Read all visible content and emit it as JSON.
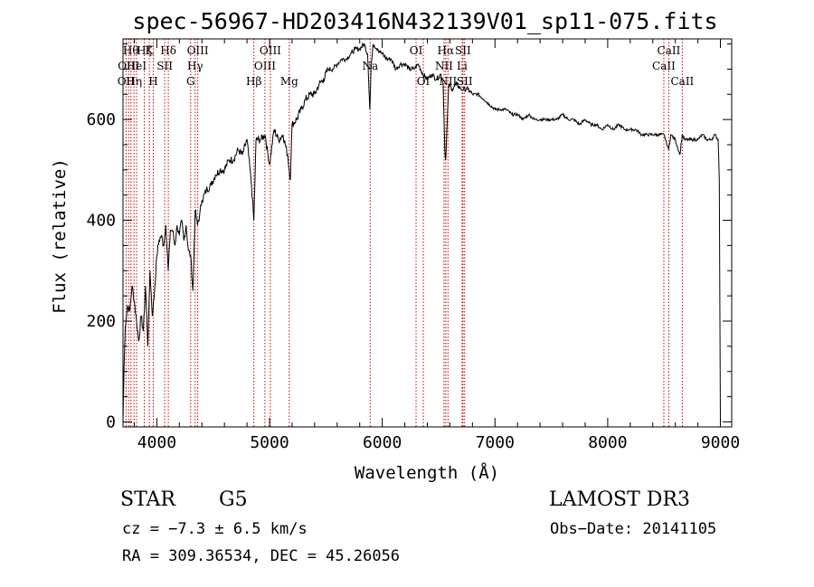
{
  "chart_data": {
    "type": "line",
    "title": "spec-56967-HD203416N432139V01_sp11-075.fits",
    "xlabel": "Wavelength (Å)",
    "ylabel": "Flux (relative)",
    "xlim": [
      3700,
      9100
    ],
    "ylim": [
      -10,
      760
    ],
    "xticks": [
      4000,
      5000,
      6000,
      7000,
      8000,
      9000
    ],
    "yticks": [
      0,
      200,
      400,
      600
    ],
    "series": [
      {
        "name": "spectrum",
        "x": [
          3700,
          3710,
          3720,
          3740,
          3760,
          3780,
          3800,
          3820,
          3840,
          3860,
          3880,
          3900,
          3920,
          3940,
          3960,
          3980,
          4000,
          4020,
          4040,
          4060,
          4080,
          4101,
          4120,
          4140,
          4160,
          4180,
          4200,
          4220,
          4240,
          4260,
          4280,
          4300,
          4320,
          4340,
          4360,
          4380,
          4400,
          4440,
          4480,
          4520,
          4560,
          4600,
          4640,
          4680,
          4720,
          4760,
          4800,
          4840,
          4861,
          4880,
          4920,
          4960,
          5000,
          5040,
          5080,
          5120,
          5160,
          5184,
          5200,
          5240,
          5280,
          5320,
          5360,
          5400,
          5440,
          5480,
          5520,
          5560,
          5600,
          5640,
          5680,
          5720,
          5760,
          5800,
          5840,
          5870,
          5890,
          5900,
          5920,
          5960,
          6000,
          6040,
          6080,
          6120,
          6160,
          6200,
          6240,
          6280,
          6320,
          6360,
          6400,
          6440,
          6480,
          6520,
          6540,
          6555,
          6563,
          6570,
          6590,
          6620,
          6660,
          6700,
          6720,
          6760,
          6800,
          6850,
          6900,
          6950,
          7000,
          7050,
          7100,
          7150,
          7200,
          7250,
          7300,
          7350,
          7400,
          7450,
          7500,
          7550,
          7600,
          7650,
          7700,
          7750,
          7800,
          7850,
          7900,
          7950,
          8000,
          8050,
          8100,
          8150,
          8200,
          8250,
          8300,
          8350,
          8400,
          8450,
          8500,
          8540,
          8560,
          8600,
          8640,
          8662,
          8680,
          8720,
          8760,
          8800,
          8840,
          8880,
          8920,
          8950,
          8980,
          8990,
          9000
        ],
        "values": [
          0,
          110,
          190,
          230,
          220,
          270,
          240,
          200,
          160,
          210,
          180,
          270,
          150,
          300,
          210,
          260,
          330,
          360,
          370,
          350,
          390,
          300,
          380,
          380,
          350,
          390,
          370,
          400,
          360,
          390,
          340,
          330,
          260,
          420,
          390,
          410,
          440,
          460,
          470,
          490,
          500,
          500,
          520,
          520,
          540,
          530,
          560,
          470,
          400,
          560,
          560,
          570,
          510,
          580,
          560,
          570,
          530,
          480,
          590,
          600,
          620,
          640,
          650,
          650,
          670,
          680,
          700,
          700,
          710,
          720,
          720,
          730,
          740,
          740,
          750,
          730,
          620,
          700,
          750,
          740,
          730,
          720,
          720,
          700,
          710,
          710,
          700,
          700,
          710,
          690,
          680,
          690,
          680,
          690,
          670,
          540,
          520,
          560,
          670,
          660,
          670,
          660,
          660,
          660,
          650,
          650,
          640,
          630,
          620,
          620,
          620,
          610,
          610,
          600,
          610,
          600,
          600,
          600,
          600,
          600,
          610,
          600,
          600,
          590,
          600,
          590,
          590,
          580,
          590,
          580,
          590,
          580,
          580,
          580,
          570,
          570,
          570,
          570,
          570,
          540,
          570,
          560,
          530,
          570,
          560,
          560,
          560,
          560,
          570,
          560,
          560,
          570,
          560,
          480,
          0
        ]
      }
    ],
    "line_markers": [
      {
        "x": 3727,
        "label": "OII",
        "row": 2
      },
      {
        "x": 3750,
        "label": "OIII",
        "row": 1
      },
      {
        "x": 3770,
        "label": "Hθ",
        "row": 0
      },
      {
        "x": 3798,
        "label": "Hη",
        "row": 2
      },
      {
        "x": 3820,
        "label": "HeI",
        "row": 1
      },
      {
        "x": 3889,
        "label": "Hζ",
        "row": 0
      },
      {
        "x": 3934,
        "label": "K",
        "row": 0
      },
      {
        "x": 3969,
        "label": "H",
        "row": 2
      },
      {
        "x": 4070,
        "label": "SII",
        "row": 1
      },
      {
        "x": 4102,
        "label": "Hδ",
        "row": 0
      },
      {
        "x": 4300,
        "label": "G",
        "row": 2
      },
      {
        "x": 4340,
        "label": "Hγ",
        "row": 1
      },
      {
        "x": 4363,
        "label": "OIII",
        "row": 0
      },
      {
        "x": 4861,
        "label": "Hβ",
        "row": 2
      },
      {
        "x": 4959,
        "label": "OIII",
        "row": 1
      },
      {
        "x": 5007,
        "label": "OIII",
        "row": 0
      },
      {
        "x": 5175,
        "label": "Mg",
        "row": 2
      },
      {
        "x": 5893,
        "label": "Na",
        "row": 1
      },
      {
        "x": 6300,
        "label": "OI",
        "row": 0
      },
      {
        "x": 6364,
        "label": "OI",
        "row": 2
      },
      {
        "x": 6548,
        "label": "NII",
        "row": 1
      },
      {
        "x": 6563,
        "label": "Hα",
        "row": 0
      },
      {
        "x": 6583,
        "label": "NII",
        "row": 2
      },
      {
        "x": 6708,
        "label": "Li",
        "row": 1
      },
      {
        "x": 6716,
        "label": "SII",
        "row": 0
      },
      {
        "x": 6731,
        "label": "SII",
        "row": 2
      },
      {
        "x": 8498,
        "label": "CaII",
        "row": 1
      },
      {
        "x": 8542,
        "label": "CaII",
        "row": 0
      },
      {
        "x": 8662,
        "label": "CaII",
        "row": 2
      }
    ]
  },
  "info": {
    "class": "STAR",
    "subclass": "G5",
    "survey": "LAMOST DR3",
    "cz": "cz = −7.3 ± 6.5 km/s",
    "obs_date": "Obs−Date: 20141105",
    "coords": "RA = 309.36534, DEC =  45.26056"
  },
  "colors": {
    "marker": "#cc0000",
    "line": "#000000",
    "axes": "#000000"
  }
}
